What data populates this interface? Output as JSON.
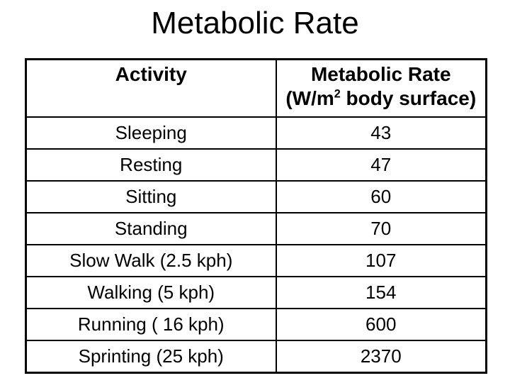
{
  "slide": {
    "title": "Metabolic Rate",
    "colors": {
      "background": "#ffffff",
      "text": "#000000",
      "table_border": "#000000"
    }
  },
  "table": {
    "header": {
      "activity": "Activity",
      "rate_title": "Metabolic Rate",
      "rate_unit_prefix": "(W/m",
      "rate_unit_sup": "2",
      "rate_unit_suffix": " body surface)"
    },
    "rows": [
      {
        "activity": "Sleeping",
        "rate": "43"
      },
      {
        "activity": "Resting",
        "rate": "47"
      },
      {
        "activity": "Sitting",
        "rate": "60"
      },
      {
        "activity": "Standing",
        "rate": "70"
      },
      {
        "activity": "Slow Walk (2.5 kph)",
        "rate": "107"
      },
      {
        "activity": "Walking (5 kph)",
        "rate": "154"
      },
      {
        "activity": "Running ( 16 kph)",
        "rate": "600"
      },
      {
        "activity": "Sprinting (25 kph)",
        "rate": "2370"
      }
    ]
  }
}
